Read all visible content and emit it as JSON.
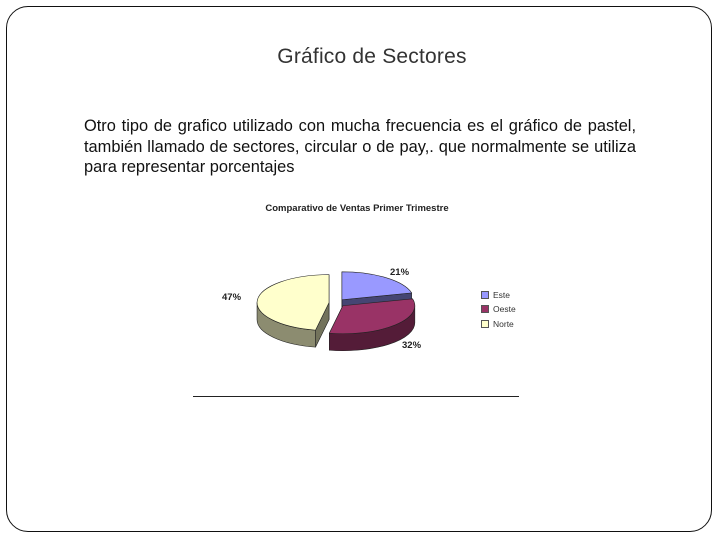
{
  "slide": {
    "title": "Gráfico de Sectores",
    "body": "Otro tipo de grafico utilizado con mucha frecuencia es el gráfico de pastel, también llamado de sectores, circular o de pay,. que normalmente se utiliza para representar porcentajes"
  },
  "chart_data": {
    "type": "pie",
    "title": "Comparativo de Ventas Primer Trimestre",
    "categories": [
      "Este",
      "Oeste",
      "Norte"
    ],
    "values": [
      21,
      32,
      47
    ],
    "value_labels": [
      "21%",
      "32%",
      "47%"
    ],
    "colors": [
      "#9999ff",
      "#993366",
      "#ffffcc"
    ],
    "style": "3d-exploded",
    "legend_placement": "right"
  }
}
